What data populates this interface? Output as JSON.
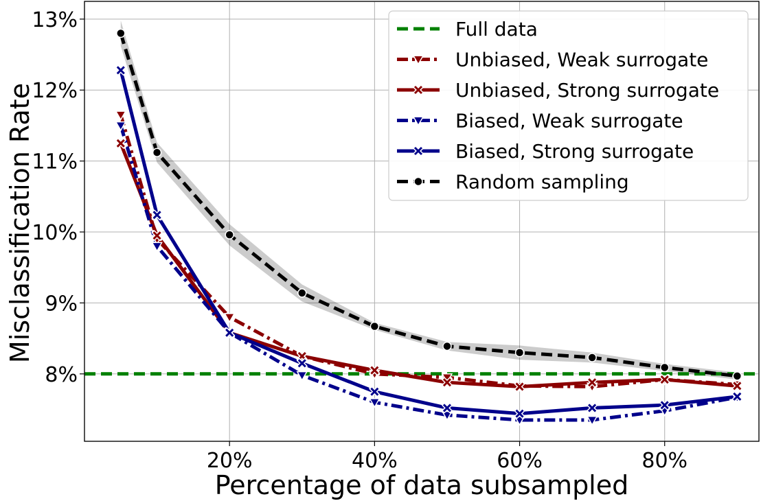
{
  "chart_data": {
    "type": "line",
    "title": "",
    "xlabel": "Percentage of data subsampled",
    "ylabel": "Misclassification Rate",
    "xlim": [
      0,
      93
    ],
    "ylim": [
      7.05,
      13.25
    ],
    "x_ticks": [
      20,
      40,
      60,
      80
    ],
    "x_tick_labels": [
      "20%",
      "40%",
      "60%",
      "80%"
    ],
    "y_ticks": [
      8,
      9,
      10,
      11,
      12,
      13
    ],
    "y_tick_labels": [
      "8%",
      "9%",
      "10%",
      "11%",
      "12%",
      "13%"
    ],
    "grid": true,
    "legend_position": "top-right",
    "x": [
      5,
      10,
      20,
      30,
      40,
      50,
      60,
      70,
      80,
      90
    ],
    "hline": {
      "name": "Full data",
      "y": 8.0,
      "color": "#008000"
    },
    "series": [
      {
        "name": "Unbiased, Weak surrogate",
        "color": "#8b0000",
        "dash": "dashdot",
        "marker": "triangle-down",
        "values": [
          11.65,
          9.9,
          8.8,
          8.25,
          8.0,
          7.95,
          7.83,
          7.82,
          7.92,
          7.85
        ]
      },
      {
        "name": "Unbiased, Strong surrogate",
        "color": "#8b0000",
        "dash": "solid",
        "marker": "x",
        "values": [
          11.25,
          9.95,
          8.58,
          8.25,
          8.05,
          7.88,
          7.82,
          7.88,
          7.92,
          7.83
        ]
      },
      {
        "name": "Biased, Weak surrogate",
        "color": "#00008b",
        "dash": "dashdot",
        "marker": "triangle-down",
        "values": [
          11.5,
          9.8,
          8.58,
          7.98,
          7.6,
          7.42,
          7.35,
          7.35,
          7.48,
          7.67
        ]
      },
      {
        "name": "Biased, Strong surrogate",
        "color": "#00008b",
        "dash": "solid",
        "marker": "x",
        "values": [
          12.28,
          10.24,
          8.58,
          8.15,
          7.75,
          7.52,
          7.44,
          7.52,
          7.56,
          7.68
        ]
      },
      {
        "name": "Random sampling",
        "color": "#000000",
        "dash": "dashed",
        "marker": "circle",
        "values": [
          12.8,
          11.12,
          9.96,
          9.14,
          8.67,
          8.39,
          8.3,
          8.23,
          8.09,
          7.97
        ],
        "band": [
          0.18,
          0.14,
          0.15,
          0.12,
          0.05,
          0.06,
          0.1,
          0.07,
          0.05,
          0.05
        ]
      }
    ]
  }
}
